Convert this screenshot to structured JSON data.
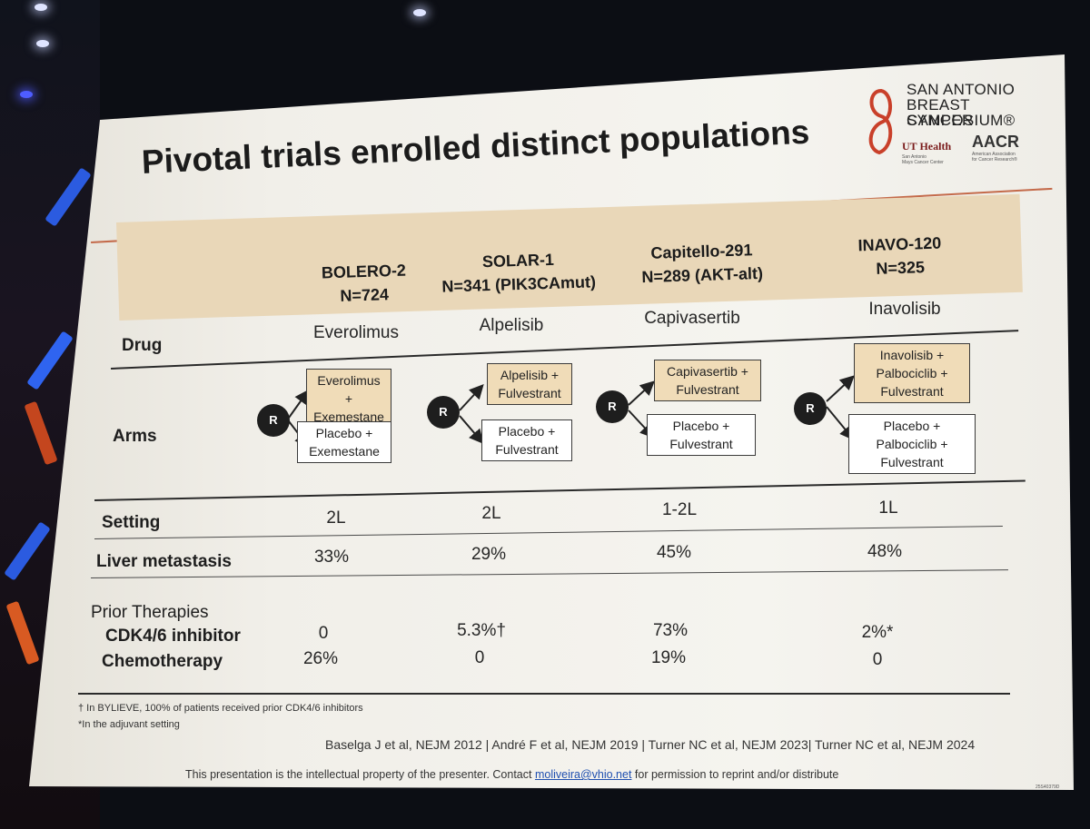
{
  "slide": {
    "title": "Pivotal trials enrolled distinct populations",
    "logo": {
      "line1": "SAN ANTONIO",
      "line2": "BREAST CANCER",
      "line3": "SYMPOSIUM®",
      "ut": "UT Health",
      "ut_sub1": "San Antonio",
      "ut_sub2": "Mays Cancer Center",
      "aacr": "AACR",
      "aacr_sub1": "American Association",
      "aacr_sub2": "for Cancer Research®"
    },
    "accent_color": "#c46a4a",
    "header_band_color": "#e9d7b8"
  },
  "trials": [
    {
      "name": "BOLERO-2",
      "n": "N=724",
      "drug": "Everolimus",
      "arm1": [
        "Everolimus +",
        "Exemestane"
      ],
      "arm2": [
        "Placebo +",
        "Exemestane"
      ],
      "setting": "2L",
      "liver": "33%",
      "cdk": "0",
      "chemo": "26%"
    },
    {
      "name": "SOLAR-1",
      "n": "N=341 (PIK3CAmut)",
      "drug": "Alpelisib",
      "arm1": [
        "Alpelisib +",
        "Fulvestrant"
      ],
      "arm2": [
        "Placebo +",
        "Fulvestrant"
      ],
      "setting": "2L",
      "liver": "29%",
      "cdk": "5.3%†",
      "chemo": "0"
    },
    {
      "name": "Capitello-291",
      "n": "N=289 (AKT-alt)",
      "drug": "Capivasertib",
      "arm1": [
        "Capivasertib +",
        "Fulvestrant"
      ],
      "arm2": [
        "Placebo +",
        "Fulvestrant"
      ],
      "setting": "1-2L",
      "liver": "45%",
      "cdk": "73%",
      "chemo": "19%"
    },
    {
      "name": "INAVO-120",
      "n": "N=325",
      "drug": "Inavolisib",
      "arm1": [
        "Inavolisib +",
        "Palbociclib +",
        "Fulvestrant"
      ],
      "arm2": [
        "Placebo +",
        "Palbociclib +",
        "Fulvestrant"
      ],
      "setting": "1L",
      "liver": "48%",
      "cdk": "2%*",
      "chemo": "0"
    }
  ],
  "rows": {
    "drug": "Drug",
    "arms": "Arms",
    "setting": "Setting",
    "liver": "Liver metastasis",
    "prior": "Prior Therapies",
    "cdk": "CDK4/6 inhibitor",
    "chemo": "Chemotherapy"
  },
  "randomization_label": "R",
  "footnotes": {
    "dagger": "† In BYLIEVE, 100% of patients received prior CDK4/6 inhibitors",
    "star": "*In the adjuvant setting"
  },
  "citations": "Baselga J et al, NEJM 2012 | André F et al, NEJM 2019 | Turner NC et al, NEJM 2023| Turner NC et al, NEJM 2024",
  "notice": {
    "pre": "This presentation is the intellectual property of the presenter. Contact",
    "email": "moliveira@vhio.net",
    "post": "for permission to reprint and/or distribute"
  },
  "slide_code": "25S40379D"
}
